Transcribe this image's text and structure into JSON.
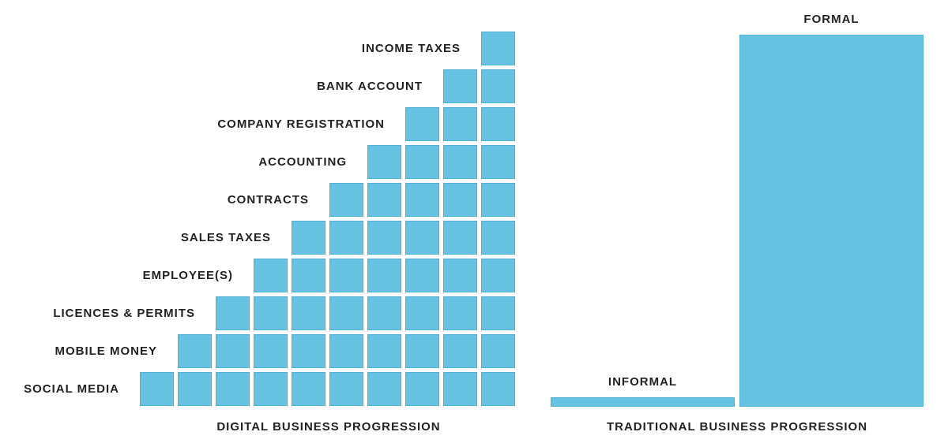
{
  "colors": {
    "block_fill": "#66c2e0",
    "block_border": "#4fb3d6",
    "text": "#222222"
  },
  "digital": {
    "caption": "DIGITAL BUSINESS PROGRESSION",
    "steps": [
      {
        "label": "SOCIAL MEDIA",
        "count": 10
      },
      {
        "label": "MOBILE MONEY",
        "count": 9
      },
      {
        "label": "LICENCES & PERMITS",
        "count": 8
      },
      {
        "label": "EMPLOYEE(S)",
        "count": 7
      },
      {
        "label": "SALES TAXES",
        "count": 6
      },
      {
        "label": "CONTRACTS",
        "count": 5
      },
      {
        "label": "ACCOUNTING",
        "count": 4
      },
      {
        "label": "COMPANY REGISTRATION",
        "count": 3
      },
      {
        "label": "BANK ACCOUNT",
        "count": 2
      },
      {
        "label": "INCOME TAXES",
        "count": 1
      }
    ]
  },
  "traditional": {
    "caption": "TRADITIONAL BUSINESS PROGRESSION",
    "bars": [
      {
        "label": "INFORMAL",
        "level": 0.025
      },
      {
        "label": "FORMAL",
        "level": 1.0
      }
    ]
  }
}
